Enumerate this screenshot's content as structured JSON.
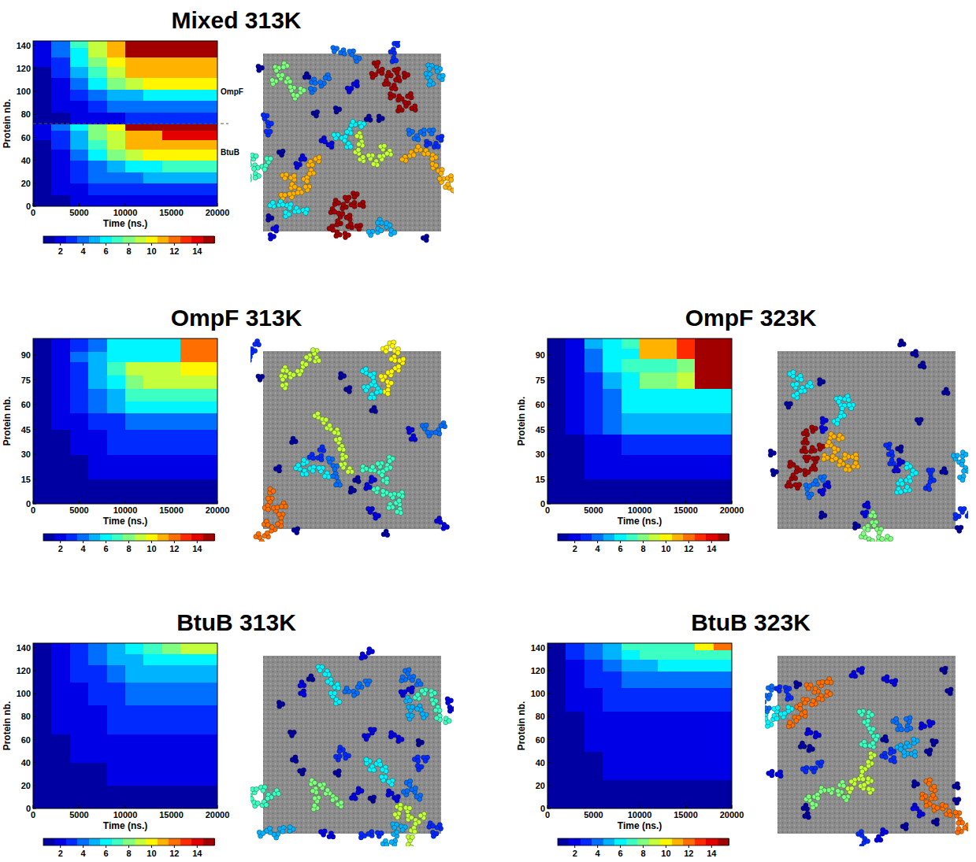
{
  "chart_data": [
    {
      "type": "heatmap",
      "title": "Mixed 313K",
      "x_label": "Time (ns.)",
      "y_label": "Protein nb.",
      "xlim": [
        0,
        20000
      ],
      "xticks": [
        0,
        5000,
        10000,
        15000,
        20000
      ],
      "ylim": [
        0,
        144
      ],
      "yticks": [
        0,
        20,
        40,
        60,
        80,
        100,
        120,
        140
      ],
      "x_bins": [
        0,
        2000,
        4000,
        6000,
        8000,
        10000,
        12000,
        14000,
        16000,
        18000,
        20000
      ],
      "y_bins": [
        0,
        10,
        20,
        30,
        40,
        50,
        58,
        66,
        72,
        82,
        92,
        102,
        112,
        122,
        130,
        138,
        144
      ],
      "cells": [
        [
          1,
          1,
          2,
          2,
          2,
          2,
          2,
          2,
          2,
          2
        ],
        [
          1,
          2,
          2,
          3,
          3,
          3,
          3,
          3,
          3,
          3
        ],
        [
          1,
          2,
          3,
          4,
          4,
          4,
          5,
          5,
          5,
          5
        ],
        [
          1,
          2,
          3,
          4,
          5,
          6,
          6,
          7,
          7,
          7
        ],
        [
          1,
          2,
          4,
          6,
          8,
          9,
          10,
          10,
          10,
          10
        ],
        [
          1,
          3,
          5,
          7,
          9,
          11,
          11,
          11,
          11,
          11
        ],
        [
          2,
          3,
          5,
          8,
          9,
          11,
          11,
          14,
          14,
          14
        ],
        [
          2,
          4,
          6,
          8,
          10,
          15,
          15,
          15,
          15,
          15
        ],
        [
          1,
          1,
          2,
          2,
          2,
          3,
          3,
          3,
          3,
          3
        ],
        [
          1,
          2,
          2,
          3,
          4,
          4,
          4,
          4,
          4,
          4
        ],
        [
          1,
          2,
          3,
          4,
          5,
          5,
          6,
          6,
          6,
          6
        ],
        [
          1,
          2,
          4,
          6,
          8,
          9,
          10,
          10,
          10,
          10
        ],
        [
          1,
          3,
          5,
          7,
          9,
          11,
          11,
          11,
          11,
          11
        ],
        [
          2,
          3,
          6,
          8,
          10,
          11,
          11,
          11,
          11,
          11
        ],
        [
          2,
          4,
          6,
          9,
          11,
          15,
          15,
          15,
          15,
          15
        ],
        [
          2,
          4,
          7,
          9,
          11,
          15,
          15,
          15,
          15,
          15
        ]
      ],
      "divider_y": 72,
      "annotations": [
        {
          "text": "OmpF",
          "y": 100
        },
        {
          "text": "BtuB",
          "y": 47
        }
      ],
      "colorbar": {
        "range": [
          0.5,
          15.5
        ],
        "ticks": [
          2,
          4,
          6,
          8,
          10,
          12,
          14
        ]
      },
      "snapshot_cluster_sizes": [
        15,
        15,
        11,
        11,
        9,
        8,
        7,
        6,
        6,
        5,
        5,
        4,
        4,
        4,
        3,
        3,
        3,
        2,
        2,
        2,
        2,
        1,
        1,
        1,
        1,
        1,
        1,
        1,
        1,
        1
      ]
    },
    {
      "type": "heatmap",
      "title": "OmpF 313K",
      "x_label": "Time (ns.)",
      "y_label": "Protein nb.",
      "xlim": [
        0,
        20000
      ],
      "xticks": [
        0,
        5000,
        10000,
        15000,
        20000
      ],
      "ylim": [
        0,
        100
      ],
      "yticks": [
        0,
        15,
        30,
        45,
        60,
        75,
        90
      ],
      "x_bins": [
        0,
        2000,
        4000,
        6000,
        8000,
        10000,
        12000,
        14000,
        16000,
        18000,
        20000
      ],
      "y_bins": [
        0,
        15,
        30,
        45,
        55,
        62,
        70,
        78,
        86,
        92,
        100
      ],
      "cells": [
        [
          1,
          1,
          1,
          1,
          1,
          1,
          1,
          1,
          1,
          1
        ],
        [
          1,
          1,
          1,
          2,
          2,
          2,
          2,
          2,
          2,
          2
        ],
        [
          1,
          1,
          2,
          2,
          3,
          3,
          3,
          3,
          3,
          3
        ],
        [
          1,
          2,
          2,
          3,
          3,
          4,
          4,
          4,
          4,
          4
        ],
        [
          1,
          2,
          3,
          4,
          5,
          6,
          6,
          6,
          6,
          6
        ],
        [
          1,
          2,
          3,
          4,
          5,
          7,
          7,
          7,
          7,
          7
        ],
        [
          1,
          2,
          3,
          5,
          6,
          8,
          9,
          9,
          9,
          9
        ],
        [
          1,
          2,
          3,
          5,
          7,
          9,
          9,
          9,
          10,
          10
        ],
        [
          1,
          2,
          4,
          5,
          6,
          6,
          6,
          6,
          12,
          12
        ],
        [
          1,
          2,
          3,
          4,
          6,
          6,
          6,
          6,
          12,
          12
        ]
      ],
      "colorbar": {
        "range": [
          0.5,
          15.5
        ],
        "ticks": [
          2,
          4,
          6,
          8,
          10,
          12,
          14
        ]
      },
      "snapshot_cluster_sizes": [
        12,
        10,
        9,
        9,
        7,
        7,
        6,
        6,
        4,
        4,
        3,
        3,
        2,
        2,
        2,
        2,
        1,
        1,
        1,
        1,
        1,
        1,
        1,
        1,
        1,
        1
      ]
    },
    {
      "type": "heatmap",
      "title": "OmpF 323K",
      "x_label": "Time (ns.)",
      "y_label": "Protein nb.",
      "xlim": [
        0,
        20000
      ],
      "xticks": [
        0,
        5000,
        10000,
        15000,
        20000
      ],
      "ylim": [
        0,
        100
      ],
      "yticks": [
        0,
        15,
        30,
        45,
        60,
        75,
        90
      ],
      "x_bins": [
        0,
        2000,
        4000,
        6000,
        8000,
        10000,
        12000,
        14000,
        16000,
        18000,
        20000
      ],
      "y_bins": [
        0,
        15,
        30,
        42,
        55,
        70,
        80,
        88,
        94,
        100
      ],
      "cells": [
        [
          1,
          1,
          1,
          1,
          1,
          1,
          1,
          1,
          1,
          1
        ],
        [
          1,
          1,
          2,
          2,
          2,
          2,
          2,
          2,
          2,
          2
        ],
        [
          1,
          1,
          2,
          2,
          3,
          3,
          3,
          3,
          3,
          3
        ],
        [
          1,
          2,
          3,
          4,
          5,
          5,
          5,
          5,
          5,
          5
        ],
        [
          1,
          2,
          3,
          4,
          6,
          6,
          6,
          6,
          6,
          6
        ],
        [
          1,
          2,
          3,
          5,
          6,
          8,
          8,
          9,
          15,
          15
        ],
        [
          1,
          2,
          4,
          6,
          7,
          7,
          7,
          8,
          15,
          15
        ],
        [
          1,
          2,
          4,
          6,
          6,
          11,
          11,
          13,
          15,
          15
        ],
        [
          1,
          2,
          5,
          6,
          7,
          11,
          11,
          13,
          15,
          15
        ]
      ],
      "colorbar": {
        "range": [
          0.5,
          15.5
        ],
        "ticks": [
          2,
          4,
          6,
          8,
          10,
          12,
          14
        ]
      },
      "snapshot_cluster_sizes": [
        15,
        11,
        8,
        6,
        6,
        6,
        5,
        4,
        3,
        3,
        3,
        2,
        2,
        2,
        2,
        1,
        1,
        1,
        1,
        1,
        1,
        1,
        1,
        1,
        1,
        1,
        1,
        1,
        1
      ]
    },
    {
      "type": "heatmap",
      "title": "BtuB 313K",
      "x_label": "Time (ns.)",
      "y_label": "Protein nb.",
      "xlim": [
        0,
        20000
      ],
      "xticks": [
        0,
        5000,
        10000,
        15000,
        20000
      ],
      "ylim": [
        0,
        144
      ],
      "yticks": [
        0,
        20,
        40,
        60,
        80,
        100,
        120,
        140
      ],
      "x_bins": [
        0,
        2000,
        4000,
        6000,
        8000,
        10000,
        12000,
        14000,
        16000,
        18000,
        20000
      ],
      "y_bins": [
        0,
        20,
        40,
        65,
        90,
        110,
        125,
        135,
        144
      ],
      "cells": [
        [
          1,
          1,
          1,
          1,
          1,
          1,
          1,
          1,
          1,
          1
        ],
        [
          1,
          1,
          1,
          1,
          2,
          2,
          2,
          2,
          2,
          2
        ],
        [
          1,
          1,
          2,
          2,
          2,
          2,
          2,
          2,
          2,
          2
        ],
        [
          1,
          2,
          2,
          2,
          3,
          3,
          3,
          3,
          3,
          3
        ],
        [
          1,
          2,
          2,
          3,
          3,
          4,
          4,
          4,
          4,
          4
        ],
        [
          1,
          2,
          3,
          3,
          4,
          5,
          5,
          5,
          5,
          5
        ],
        [
          1,
          2,
          3,
          4,
          5,
          5,
          6,
          6,
          6,
          6
        ],
        [
          1,
          2,
          3,
          4,
          5,
          6,
          7,
          8,
          9,
          9
        ]
      ],
      "colorbar": {
        "range": [
          0.5,
          15.5
        ],
        "ticks": [
          2,
          4,
          6,
          8,
          10,
          12,
          14
        ]
      },
      "snapshot_cluster_sizes": [
        9,
        8,
        7,
        7,
        6,
        6,
        5,
        5,
        5,
        4,
        4,
        4,
        3,
        3,
        3,
        3,
        2,
        2,
        2,
        2,
        2,
        2,
        2,
        2,
        2,
        1,
        1,
        1,
        1,
        1,
        1,
        1,
        1
      ]
    },
    {
      "type": "heatmap",
      "title": "BtuB 323K",
      "x_label": "Time (ns.)",
      "y_label": "Protein nb.",
      "xlim": [
        0,
        20000
      ],
      "xticks": [
        0,
        5000,
        10000,
        15000,
        20000
      ],
      "ylim": [
        0,
        144
      ],
      "yticks": [
        0,
        20,
        40,
        60,
        80,
        100,
        120,
        140
      ],
      "x_bins": [
        0,
        2000,
        4000,
        6000,
        8000,
        10000,
        12000,
        14000,
        16000,
        18000,
        20000
      ],
      "y_bins": [
        0,
        25,
        50,
        85,
        105,
        120,
        130,
        138,
        144
      ],
      "cells": [
        [
          1,
          1,
          1,
          1,
          1,
          1,
          1,
          1,
          1,
          1
        ],
        [
          1,
          1,
          1,
          2,
          2,
          2,
          2,
          2,
          2,
          2
        ],
        [
          1,
          1,
          2,
          2,
          2,
          2,
          2,
          2,
          2,
          2
        ],
        [
          1,
          2,
          2,
          3,
          3,
          3,
          3,
          3,
          3,
          3
        ],
        [
          1,
          2,
          3,
          3,
          4,
          4,
          4,
          4,
          4,
          4
        ],
        [
          1,
          2,
          3,
          4,
          5,
          5,
          6,
          6,
          6,
          6
        ],
        [
          1,
          3,
          4,
          5,
          6,
          7,
          7,
          7,
          7,
          7
        ],
        [
          1,
          3,
          4,
          5,
          7,
          7,
          7,
          7,
          10,
          12
        ]
      ],
      "colorbar": {
        "range": [
          0.5,
          15.5
        ],
        "ticks": [
          2,
          4,
          6,
          8,
          10,
          12,
          14
        ]
      },
      "snapshot_cluster_sizes": [
        12,
        12,
        9,
        8,
        7,
        6,
        5,
        4,
        4,
        3,
        3,
        3,
        3,
        2,
        2,
        2,
        2,
        2,
        2,
        2,
        1,
        1,
        1,
        1,
        1,
        1,
        1,
        1,
        1,
        1,
        1,
        1,
        1,
        1,
        1
      ]
    }
  ]
}
